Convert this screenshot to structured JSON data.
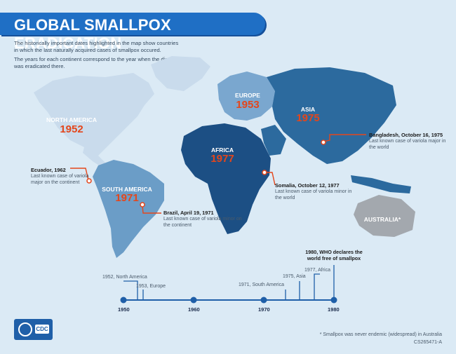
{
  "header": {
    "title": "GLOBAL SMALLPOX ERADICATION",
    "intro_1": "The historically important dates highlighted in the map show countries in which the last naturally acquired cases of smallpox occured.",
    "intro_2": "The years for each continent correspond to the year when the disease was eradicated there."
  },
  "continents": {
    "north_america": {
      "name": "NORTH AMERICA",
      "year": "1952"
    },
    "south_america": {
      "name": "SOUTH AMERICA",
      "year": "1971"
    },
    "europe": {
      "name": "EUROPE",
      "year": "1953"
    },
    "africa": {
      "name": "AFRICA",
      "year": "1977"
    },
    "asia": {
      "name": "ASIA",
      "year": "1975"
    },
    "australia": {
      "name": "AUSTRALIA*"
    }
  },
  "callouts": {
    "ecuador": {
      "title": "Ecuador, 1962",
      "text": "Last known case of variola major on the continent"
    },
    "brazil": {
      "title": "Brazil, April 19, 1971",
      "text": "Last known case of variola minor on the continent"
    },
    "somalia": {
      "title": "Somalia, October 12, 1977",
      "text": "Last known case of variola minor in the world"
    },
    "bangladesh": {
      "title": "Bangladesh, October 16, 1975",
      "text": "Last known case of variola major in the world"
    }
  },
  "timeline": {
    "ticks": [
      "1950",
      "1960",
      "1970",
      "1980"
    ],
    "events": {
      "na": "1952, North America",
      "eu": "1953, Europe",
      "sa": "1971, South America",
      "asia": "1975, Asia",
      "africa": "1977, Africa"
    },
    "who_line1": "1980, WHO declares the",
    "who_line2": "world free of smallpox"
  },
  "footer": {
    "logo_text": "CDC",
    "note": "* Smallpox was never endemic (widespread) in Australia",
    "code": "CS265471-A"
  },
  "colors": {
    "north_america": "#c9dbec",
    "south_america": "#6b9dc7",
    "europe": "#7aa7cf",
    "asia": "#2c6a9e",
    "africa": "#1c4f84",
    "australia": "#a3a8ae",
    "accent": "#e4461b",
    "timeline": "#1f5fa8"
  }
}
